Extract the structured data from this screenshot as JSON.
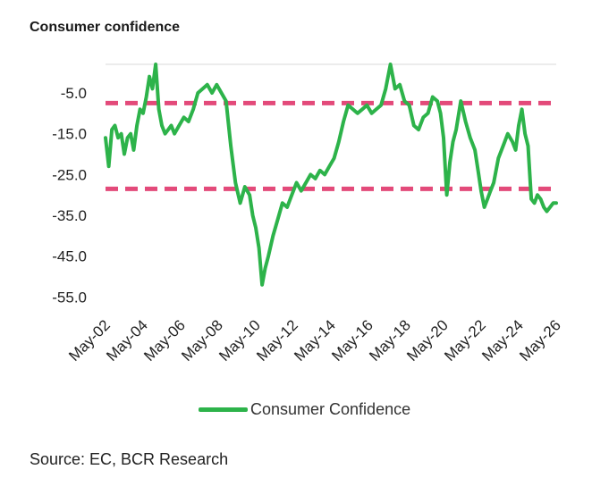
{
  "title": "Consumer confidence",
  "source": "Source: EC, BCR Research",
  "chart_data": {
    "type": "line",
    "x_tick_labels": [
      "May-02",
      "May-04",
      "May-06",
      "May-08",
      "May-10",
      "May-12",
      "May-14",
      "May-16",
      "May-18",
      "May-20",
      "May-22",
      "May-24",
      "May-26"
    ],
    "y_tick_labels": [
      "-5.0",
      "-15.0",
      "-25.0",
      "-35.0",
      "-45.0",
      "-55.0"
    ],
    "y_ticks": [
      -5,
      -15,
      -25,
      -35,
      -45,
      -55
    ],
    "ylim": [
      -56,
      2
    ],
    "xlim": [
      2002.33,
      2026.33
    ],
    "grid": false,
    "legend_position": "bottom",
    "series": [
      {
        "name": "Consumer Confidence",
        "color": "#2db34a",
        "x": [
          2002.33,
          2002.5,
          2002.67,
          2002.83,
          2003.0,
          2003.17,
          2003.33,
          2003.5,
          2003.67,
          2003.83,
          2004.0,
          2004.17,
          2004.33,
          2004.5,
          2004.67,
          2004.83,
          2005.0,
          2005.17,
          2005.33,
          2005.5,
          2005.67,
          2005.83,
          2006.0,
          2006.25,
          2006.5,
          2006.75,
          2007.0,
          2007.25,
          2007.5,
          2007.75,
          2008.0,
          2008.25,
          2008.5,
          2008.75,
          2009.0,
          2009.25,
          2009.5,
          2009.75,
          2010.0,
          2010.17,
          2010.33,
          2010.5,
          2010.67,
          2010.83,
          2011.0,
          2011.25,
          2011.5,
          2011.75,
          2012.0,
          2012.25,
          2012.5,
          2012.75,
          2013.0,
          2013.25,
          2013.5,
          2013.75,
          2014.0,
          2014.25,
          2014.5,
          2014.75,
          2015.0,
          2015.25,
          2015.5,
          2015.75,
          2016.0,
          2016.25,
          2016.5,
          2016.75,
          2017.0,
          2017.25,
          2017.5,
          2017.75,
          2018.0,
          2018.25,
          2018.5,
          2018.75,
          2019.0,
          2019.25,
          2019.5,
          2019.75,
          2020.0,
          2020.17,
          2020.33,
          2020.5,
          2020.67,
          2020.83,
          2021.0,
          2021.25,
          2021.5,
          2021.75,
          2022.0,
          2022.17,
          2022.33,
          2022.5,
          2022.67,
          2022.83,
          2023.0,
          2023.25,
          2023.5,
          2023.75,
          2024.0,
          2024.17,
          2024.33,
          2024.5,
          2024.67,
          2024.83,
          2025.0,
          2025.17,
          2025.33,
          2025.5,
          2025.67,
          2025.83,
          2026.0,
          2026.17,
          2026.33
        ],
        "values": [
          -16,
          -23,
          -14,
          -13,
          -16,
          -15,
          -20,
          -16,
          -15,
          -19,
          -13,
          -9,
          -10,
          -6,
          -1,
          -4,
          2,
          -9,
          -13,
          -15,
          -14,
          -13,
          -15,
          -13,
          -11,
          -12,
          -9,
          -5,
          -4,
          -3,
          -5,
          -3,
          -5,
          -7,
          -18,
          -27,
          -32,
          -28,
          -30,
          -35,
          -38,
          -43,
          -52,
          -48,
          -45,
          -40,
          -36,
          -32,
          -33,
          -30,
          -27,
          -29,
          -27,
          -25,
          -26,
          -24,
          -25,
          -23,
          -21,
          -17,
          -12,
          -8,
          -9,
          -10,
          -9,
          -8,
          -10,
          -9,
          -8,
          -4,
          2,
          -4,
          -3,
          -7,
          -8,
          -13,
          -14,
          -11,
          -10,
          -6,
          -7,
          -10,
          -16,
          -30,
          -22,
          -17,
          -14,
          -7,
          -12,
          -16,
          -19,
          -24,
          -29,
          -33,
          -31,
          -29,
          -27,
          -21,
          -18,
          -15,
          -17,
          -19,
          -13,
          -9,
          -15,
          -18,
          -31,
          -32,
          -30,
          -31,
          -33,
          -34,
          -33,
          -32,
          -32
        ]
      }
    ],
    "reference_lines": [
      {
        "y": -7.5,
        "color": "#e34a7a",
        "style": "dashed"
      },
      {
        "y": -28.5,
        "color": "#e34a7a",
        "style": "dashed"
      }
    ]
  }
}
